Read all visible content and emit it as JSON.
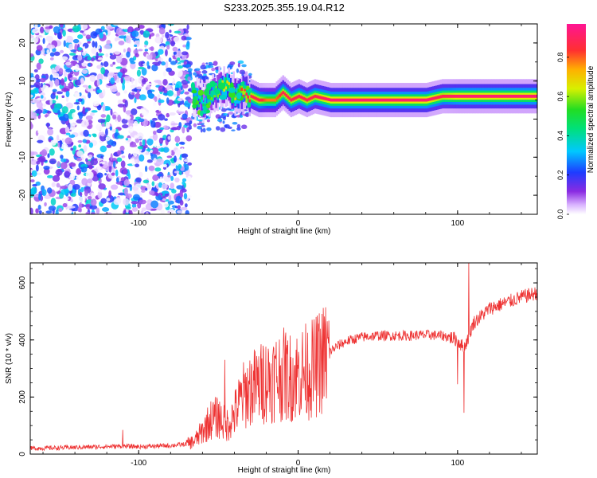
{
  "title": "S233.2025.355.19.04.R12",
  "chart_data": [
    {
      "type": "heatmap",
      "xlabel": "Height of straight line (km)",
      "ylabel": "Frequency (Hz)",
      "xlim": [
        -168,
        150
      ],
      "ylim": [
        -25,
        25
      ],
      "x_ticks": [
        -100,
        0,
        100
      ],
      "y_ticks": [
        -20,
        -10,
        0,
        10,
        20
      ],
      "noise_region": {
        "x_range": [
          -168,
          -68
        ],
        "freq_range": [
          -25,
          25
        ],
        "amplitude_range": [
          0.0,
          0.4
        ]
      },
      "signal_ridge": {
        "x": [
          -66,
          -60,
          -55,
          -50,
          -45,
          -40,
          -35,
          -30,
          -25,
          -20,
          -15,
          -10,
          -5,
          0,
          5,
          10,
          20,
          40,
          60,
          80,
          90,
          100,
          110,
          130,
          150
        ],
        "frequency": [
          6,
          4,
          6,
          8,
          9,
          6,
          7,
          6,
          5,
          5,
          5,
          7,
          5,
          6,
          5,
          6,
          5,
          5,
          5,
          5,
          6,
          6,
          6,
          6,
          6
        ],
        "amplitude": [
          0.4,
          0.5,
          0.6,
          0.6,
          0.7,
          0.7,
          0.9,
          0.9,
          0.9,
          0.8,
          0.8,
          0.9,
          0.9,
          0.9,
          0.9,
          0.9,
          0.95,
          0.95,
          0.95,
          0.95,
          0.9,
          0.95,
          0.95,
          0.95,
          0.95
        ]
      },
      "colorbar": {
        "label": "Normalized spectral amplitude",
        "ticks": [
          0.0,
          0.2,
          0.4,
          0.6,
          0.8
        ],
        "range": [
          0,
          0.97
        ]
      }
    },
    {
      "type": "line",
      "xlabel": "Height of straight line (km)",
      "ylabel": "SNR (10 * v/v)",
      "xlim": [
        -168,
        150
      ],
      "ylim": [
        0,
        670
      ],
      "x_ticks": [
        -100,
        0,
        100
      ],
      "y_ticks": [
        0,
        200,
        400,
        600
      ],
      "series": [
        {
          "name": "SNR",
          "color": "#ee3333",
          "x": [
            -168,
            -150,
            -130,
            -110,
            -100,
            -90,
            -80,
            -70,
            -65,
            -60,
            -55,
            -50,
            -45,
            -40,
            -35,
            -30,
            -25,
            -20,
            -15,
            -10,
            -5,
            0,
            5,
            10,
            15,
            20,
            25,
            30,
            40,
            50,
            60,
            70,
            80,
            90,
            95,
            100,
            104,
            110,
            120,
            130,
            140,
            150
          ],
          "y": [
            20,
            22,
            25,
            28,
            26,
            28,
            30,
            35,
            45,
            80,
            120,
            130,
            100,
            140,
            200,
            230,
            240,
            260,
            270,
            280,
            270,
            280,
            290,
            300,
            330,
            360,
            380,
            395,
            410,
            415,
            415,
            415,
            418,
            415,
            410,
            400,
            370,
            460,
            510,
            530,
            550,
            565
          ],
          "spikes": [
            {
              "x": -110,
              "y": 85
            },
            {
              "x": -46,
              "y": 330
            },
            {
              "x": -22,
              "y": 380
            },
            {
              "x": -8,
              "y": 410
            },
            {
              "x": 100,
              "y": 245
            },
            {
              "x": 104,
              "y": 145
            },
            {
              "x": 107,
              "y": 670
            }
          ]
        }
      ]
    }
  ]
}
